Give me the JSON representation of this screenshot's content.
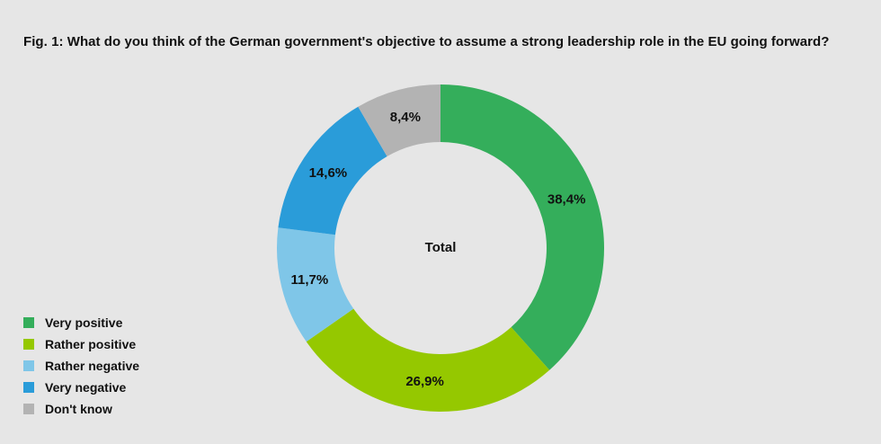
{
  "chart_data": {
    "type": "pie",
    "title": "Fig. 1: What do you think of the German government's objective to assume a strong leadership role in the EU going forward?",
    "center_label": "Total",
    "categories": [
      "Very positive",
      "Rather positive",
      "Rather negative",
      "Very negative",
      "Don't know"
    ],
    "values": [
      38.4,
      26.9,
      11.7,
      14.6,
      8.4
    ],
    "value_labels": [
      "38,4%",
      "26,9%",
      "11,7%",
      "14,6%",
      "8,4%"
    ],
    "colors": [
      "#34ae5b",
      "#95c800",
      "#7fc6e8",
      "#2a9cd9",
      "#b3b3b3"
    ],
    "legend_position": "bottom-left"
  }
}
